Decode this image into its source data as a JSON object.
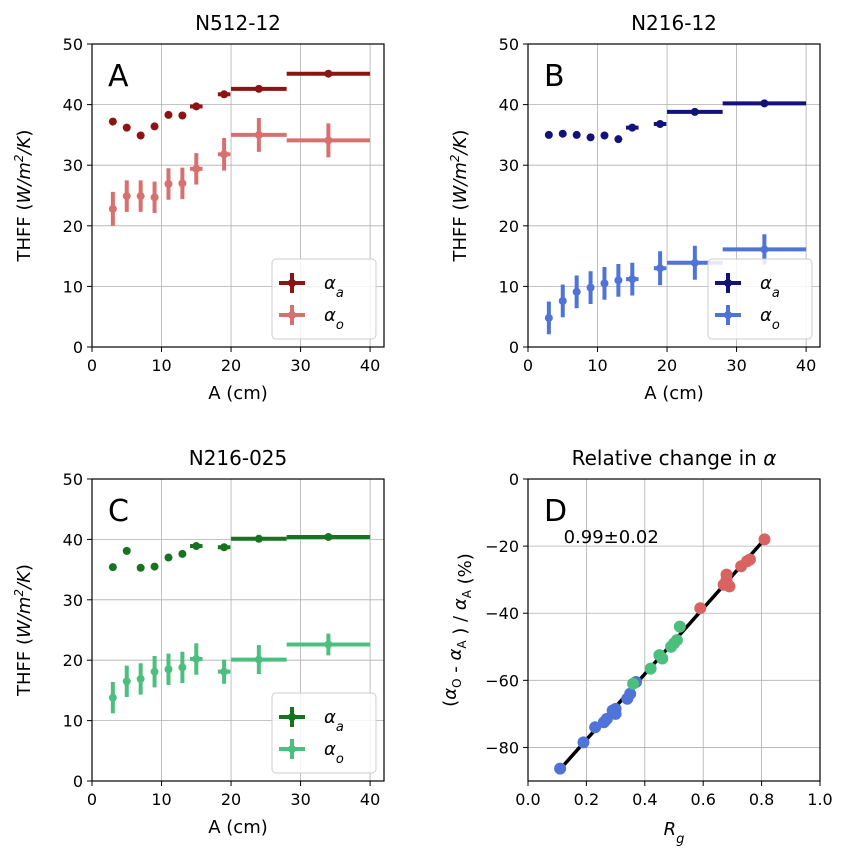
{
  "chart_data": [
    {
      "type": "scatter",
      "title": "N512-12",
      "panel_letter": "A",
      "xlabel": "A (cm)",
      "ylabel": "THFF (W/m²/K)",
      "xlim": [
        0,
        42
      ],
      "ylim": [
        0,
        50
      ],
      "xticks": [
        0,
        10,
        20,
        30,
        40
      ],
      "yticks": [
        0,
        10,
        20,
        30,
        40,
        50
      ],
      "grid": true,
      "legend_position": "lower-right",
      "series": [
        {
          "name": "αa",
          "legend_main": "α",
          "legend_sub": "a",
          "color": "#8b1414",
          "points": [
            {
              "x": 3,
              "y": 37.2,
              "xerr": 0,
              "yerr": 0
            },
            {
              "x": 5,
              "y": 36.2,
              "xerr": 0,
              "yerr": 0
            },
            {
              "x": 7,
              "y": 34.9,
              "xerr": 0,
              "yerr": 0
            },
            {
              "x": 9,
              "y": 36.4,
              "xerr": 0,
              "yerr": 0
            },
            {
              "x": 11,
              "y": 38.3,
              "xerr": 0,
              "yerr": 0
            },
            {
              "x": 13,
              "y": 38.2,
              "xerr": 0,
              "yerr": 0
            },
            {
              "x": 15,
              "y": 39.7,
              "xerr": 0.9,
              "yerr": 0
            },
            {
              "x": 19,
              "y": 41.7,
              "xerr": 0.9,
              "yerr": 0
            },
            {
              "x": 24,
              "y": 42.6,
              "xerr": 4,
              "yerr": 0
            },
            {
              "x": 34,
              "y": 45.1,
              "xerr": 6,
              "yerr": 0
            }
          ]
        },
        {
          "name": "αo",
          "legend_main": "α",
          "legend_sub": "o",
          "color": "#d97070",
          "points": [
            {
              "x": 3,
              "y": 22.8,
              "xerr": 0,
              "yerr": 2.8
            },
            {
              "x": 5,
              "y": 24.9,
              "xerr": 0,
              "yerr": 2.6
            },
            {
              "x": 7,
              "y": 24.9,
              "xerr": 0,
              "yerr": 2.6
            },
            {
              "x": 9,
              "y": 24.7,
              "xerr": 0,
              "yerr": 2.6
            },
            {
              "x": 11,
              "y": 26.9,
              "xerr": 0,
              "yerr": 2.6
            },
            {
              "x": 13,
              "y": 27.0,
              "xerr": 0,
              "yerr": 2.6
            },
            {
              "x": 15,
              "y": 29.4,
              "xerr": 0.9,
              "yerr": 2.6
            },
            {
              "x": 19,
              "y": 31.8,
              "xerr": 0.9,
              "yerr": 2.7
            },
            {
              "x": 24,
              "y": 35.0,
              "xerr": 4,
              "yerr": 2.8
            },
            {
              "x": 34,
              "y": 34.1,
              "xerr": 6,
              "yerr": 2.8
            }
          ]
        }
      ]
    },
    {
      "type": "scatter",
      "title": "N216-12",
      "panel_letter": "B",
      "xlabel": "A (cm)",
      "ylabel": "THFF (W/m²/K)",
      "xlim": [
        0,
        42
      ],
      "ylim": [
        0,
        50
      ],
      "xticks": [
        0,
        10,
        20,
        30,
        40
      ],
      "yticks": [
        0,
        10,
        20,
        30,
        40,
        50
      ],
      "grid": true,
      "legend_position": "lower-right",
      "series": [
        {
          "name": "αa",
          "legend_main": "α",
          "legend_sub": "a",
          "color": "#12127a",
          "points": [
            {
              "x": 3,
              "y": 35.0,
              "xerr": 0,
              "yerr": 0
            },
            {
              "x": 5,
              "y": 35.2,
              "xerr": 0,
              "yerr": 0
            },
            {
              "x": 7,
              "y": 35.0,
              "xerr": 0,
              "yerr": 0
            },
            {
              "x": 9,
              "y": 34.6,
              "xerr": 0,
              "yerr": 0
            },
            {
              "x": 11,
              "y": 34.9,
              "xerr": 0,
              "yerr": 0
            },
            {
              "x": 13,
              "y": 34.3,
              "xerr": 0,
              "yerr": 0
            },
            {
              "x": 15,
              "y": 36.2,
              "xerr": 0.9,
              "yerr": 0
            },
            {
              "x": 19,
              "y": 36.8,
              "xerr": 0.9,
              "yerr": 0
            },
            {
              "x": 24,
              "y": 38.8,
              "xerr": 4,
              "yerr": 0
            },
            {
              "x": 34,
              "y": 40.2,
              "xerr": 6,
              "yerr": 0
            }
          ]
        },
        {
          "name": "αo",
          "legend_main": "α",
          "legend_sub": "o",
          "color": "#4f73d8",
          "points": [
            {
              "x": 3,
              "y": 4.8,
              "xerr": 0,
              "yerr": 2.7
            },
            {
              "x": 5,
              "y": 7.6,
              "xerr": 0,
              "yerr": 2.7
            },
            {
              "x": 7,
              "y": 9.1,
              "xerr": 0,
              "yerr": 2.7
            },
            {
              "x": 9,
              "y": 9.8,
              "xerr": 0,
              "yerr": 2.7
            },
            {
              "x": 11,
              "y": 10.5,
              "xerr": 0,
              "yerr": 2.7
            },
            {
              "x": 13,
              "y": 11.0,
              "xerr": 0,
              "yerr": 2.7
            },
            {
              "x": 15,
              "y": 11.2,
              "xerr": 0.9,
              "yerr": 2.7
            },
            {
              "x": 19,
              "y": 13.0,
              "xerr": 0.9,
              "yerr": 2.8
            },
            {
              "x": 24,
              "y": 13.9,
              "xerr": 4,
              "yerr": 2.8
            },
            {
              "x": 34,
              "y": 16.1,
              "xerr": 6,
              "yerr": 2.5
            }
          ]
        }
      ]
    },
    {
      "type": "scatter",
      "title": "N216-025",
      "panel_letter": "C",
      "xlabel": "A (cm)",
      "ylabel": "THFF (W/m²/K)",
      "xlim": [
        0,
        42
      ],
      "ylim": [
        0,
        50
      ],
      "xticks": [
        0,
        10,
        20,
        30,
        40
      ],
      "yticks": [
        0,
        10,
        20,
        30,
        40,
        50
      ],
      "grid": true,
      "legend_position": "lower-right",
      "series": [
        {
          "name": "αa",
          "legend_main": "α",
          "legend_sub": "a",
          "color": "#17731f",
          "points": [
            {
              "x": 3,
              "y": 35.4,
              "xerr": 0,
              "yerr": 0
            },
            {
              "x": 5,
              "y": 38.1,
              "xerr": 0,
              "yerr": 0
            },
            {
              "x": 7,
              "y": 35.3,
              "xerr": 0,
              "yerr": 0
            },
            {
              "x": 9,
              "y": 35.5,
              "xerr": 0,
              "yerr": 0
            },
            {
              "x": 11,
              "y": 37.0,
              "xerr": 0,
              "yerr": 0
            },
            {
              "x": 13,
              "y": 37.6,
              "xerr": 0,
              "yerr": 0
            },
            {
              "x": 15,
              "y": 38.9,
              "xerr": 0.9,
              "yerr": 0
            },
            {
              "x": 19,
              "y": 38.7,
              "xerr": 0.9,
              "yerr": 0
            },
            {
              "x": 24,
              "y": 40.1,
              "xerr": 4,
              "yerr": 0
            },
            {
              "x": 34,
              "y": 40.4,
              "xerr": 6,
              "yerr": 0
            }
          ]
        },
        {
          "name": "αo",
          "legend_main": "α",
          "legend_sub": "o",
          "color": "#4cbf7f",
          "points": [
            {
              "x": 3,
              "y": 13.8,
              "xerr": 0,
              "yerr": 2.6
            },
            {
              "x": 5,
              "y": 16.5,
              "xerr": 0,
              "yerr": 2.6
            },
            {
              "x": 7,
              "y": 16.9,
              "xerr": 0,
              "yerr": 2.6
            },
            {
              "x": 9,
              "y": 18.1,
              "xerr": 0,
              "yerr": 2.6
            },
            {
              "x": 11,
              "y": 18.5,
              "xerr": 0,
              "yerr": 2.6
            },
            {
              "x": 13,
              "y": 18.8,
              "xerr": 0,
              "yerr": 2.6
            },
            {
              "x": 15,
              "y": 20.2,
              "xerr": 0.9,
              "yerr": 2.6
            },
            {
              "x": 19,
              "y": 18.1,
              "xerr": 0.9,
              "yerr": 2.0
            },
            {
              "x": 24,
              "y": 20.1,
              "xerr": 4,
              "yerr": 2.4
            },
            {
              "x": 34,
              "y": 22.6,
              "xerr": 6,
              "yerr": 1.8
            }
          ]
        }
      ]
    },
    {
      "type": "scatter",
      "title_prefix": "Relative change in ",
      "title_symbol": "α",
      "panel_letter": "D",
      "annotation": "0.99±0.02",
      "xlabel_main": "R",
      "xlabel_sub": "g",
      "ylabel": "(αO - αA ) / αA (%)",
      "xlim": [
        0.0,
        1.0
      ],
      "ylim": [
        -90,
        0
      ],
      "xticks": [
        "0.0",
        "0.2",
        "0.4",
        "0.6",
        "0.8",
        "1.0"
      ],
      "yticks": [
        "0",
        "−20",
        "−40",
        "−60",
        "−80"
      ],
      "ytick_values": [
        0,
        -20,
        -40,
        -60,
        -80
      ],
      "grid": true,
      "fit_line": {
        "color": "#000000",
        "x": [
          0.11,
          0.81
        ],
        "y": [
          -86.5,
          -18.0
        ]
      },
      "series": [
        {
          "name": "N216-12",
          "color": "#4f73d8",
          "points": [
            {
              "x": 0.11,
              "y": -86.3
            },
            {
              "x": 0.19,
              "y": -78.5
            },
            {
              "x": 0.23,
              "y": -74.0
            },
            {
              "x": 0.26,
              "y": -72.5
            },
            {
              "x": 0.27,
              "y": -71.5
            },
            {
              "x": 0.29,
              "y": -69.0
            },
            {
              "x": 0.3,
              "y": -68.5
            },
            {
              "x": 0.3,
              "y": -70.0
            },
            {
              "x": 0.34,
              "y": -65.5
            },
            {
              "x": 0.35,
              "y": -64.0
            },
            {
              "x": 0.37,
              "y": -60.5
            }
          ]
        },
        {
          "name": "N216-025",
          "color": "#4cbf7f",
          "points": [
            {
              "x": 0.36,
              "y": -61.0
            },
            {
              "x": 0.42,
              "y": -56.5
            },
            {
              "x": 0.45,
              "y": -52.5
            },
            {
              "x": 0.46,
              "y": -53.5
            },
            {
              "x": 0.49,
              "y": -50.0
            },
            {
              "x": 0.5,
              "y": -49.0
            },
            {
              "x": 0.51,
              "y": -48.0
            },
            {
              "x": 0.52,
              "y": -44.0
            }
          ]
        },
        {
          "name": "N512-12",
          "color": "#d96262",
          "points": [
            {
              "x": 0.59,
              "y": -38.5
            },
            {
              "x": 0.67,
              "y": -31.5
            },
            {
              "x": 0.68,
              "y": -28.5
            },
            {
              "x": 0.68,
              "y": -30.0
            },
            {
              "x": 0.69,
              "y": -32.0
            },
            {
              "x": 0.73,
              "y": -26.0
            },
            {
              "x": 0.75,
              "y": -24.5
            },
            {
              "x": 0.76,
              "y": -24.0
            },
            {
              "x": 0.81,
              "y": -18.0
            }
          ]
        }
      ]
    }
  ]
}
